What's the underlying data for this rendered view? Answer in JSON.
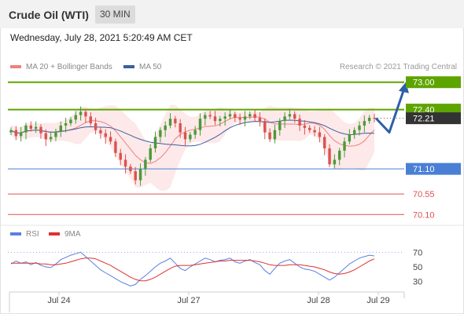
{
  "header": {
    "title": "Crude Oil (WTI)",
    "timeframe": "30 MIN"
  },
  "datetime": "Wednesday, July 28, 2021 5:20:49 AM CET",
  "legend": {
    "ma20_label": "MA 20 + Bollinger Bands",
    "ma50_label": "MA 50",
    "copyright": "Research © 2021 Trading Central"
  },
  "rsi_legend": {
    "rsi_label": "RSI",
    "ma_label": "9MA"
  },
  "colors": {
    "resistance": "#5ea400",
    "support": "#4a7fd6",
    "pivot": "#e05050",
    "current": "#333333",
    "bull": "#4a9a3a",
    "bear": "#d9534f",
    "ma20": "#f08080",
    "ma50": "#3a5fa0",
    "band": "#fde3e3",
    "arrow": "#2f5ea8",
    "rsi": "#5b7fe0",
    "rsi_ma": "#e03030"
  },
  "chart_data": [
    {
      "type": "candlestick",
      "instrument": "Crude Oil (WTI)",
      "timeframe": "30 MIN",
      "x_ticks": [
        "Jul 24",
        "Jul 27",
        "Jul 28",
        "Jul 29"
      ],
      "ylim": [
        69.95,
        73.15
      ],
      "levels": [
        {
          "value": 73.0,
          "label": "73.00",
          "kind": "resistance"
        },
        {
          "value": 72.4,
          "label": "72.40",
          "kind": "resistance"
        },
        {
          "value": 72.21,
          "label": "72.21",
          "kind": "current"
        },
        {
          "value": 71.1,
          "label": "71.10",
          "kind": "support"
        },
        {
          "value": 70.55,
          "label": "70.55",
          "kind": "pivot"
        },
        {
          "value": 70.1,
          "label": "70.10",
          "kind": "pivot"
        }
      ],
      "close_series": [
        71.95,
        71.82,
        71.9,
        72.05,
        71.98,
        72.02,
        71.88,
        71.75,
        71.8,
        71.92,
        72.05,
        72.1,
        72.18,
        72.28,
        72.35,
        72.25,
        72.1,
        71.95,
        71.88,
        71.8,
        71.7,
        71.45,
        71.3,
        71.15,
        71.05,
        70.85,
        71.1,
        71.3,
        71.55,
        71.8,
        71.95,
        72.05,
        72.2,
        72.1,
        71.9,
        71.75,
        71.85,
        71.95,
        72.2,
        72.28,
        72.25,
        72.15,
        72.2,
        72.25,
        72.3,
        72.22,
        72.18,
        72.25,
        72.3,
        72.22,
        72.15,
        71.9,
        71.75,
        71.95,
        72.15,
        72.25,
        72.3,
        72.2,
        72.05,
        72.0,
        71.95,
        71.9,
        71.8,
        71.55,
        71.2,
        71.3,
        71.5,
        71.7,
        71.85,
        71.95,
        72.05,
        72.15,
        72.22,
        72.21
      ],
      "arrow_path": [
        72.21,
        71.9,
        73.0
      ],
      "series": [
        {
          "name": "MA 20 + Bollinger Bands"
        },
        {
          "name": "MA 50"
        }
      ]
    },
    {
      "type": "line",
      "y_ticks": [
        "70",
        "50",
        "30"
      ],
      "ylim": [
        20,
        80
      ],
      "series": [
        {
          "name": "RSI",
          "values": [
            54,
            58,
            55,
            57,
            53,
            56,
            52,
            50,
            49,
            54,
            60,
            63,
            66,
            68,
            70,
            64,
            58,
            52,
            46,
            42,
            38,
            34,
            30,
            27,
            24,
            26,
            33,
            38,
            44,
            50,
            55,
            58,
            62,
            55,
            48,
            45,
            50,
            54,
            58,
            62,
            60,
            57,
            59,
            60,
            62,
            57,
            55,
            58,
            60,
            56,
            53,
            45,
            40,
            48,
            55,
            58,
            60,
            55,
            50,
            47,
            46,
            44,
            40,
            36,
            32,
            36,
            42,
            48,
            54,
            58,
            62,
            64,
            66,
            65
          ]
        },
        {
          "name": "9MA",
          "values": [
            55,
            55,
            55,
            55,
            55,
            55,
            54,
            54,
            53,
            53,
            54,
            55,
            57,
            59,
            61,
            62,
            62,
            61,
            58,
            55,
            52,
            48,
            44,
            40,
            36,
            33,
            31,
            31,
            33,
            36,
            40,
            44,
            48,
            51,
            52,
            52,
            52,
            53,
            54,
            55,
            56,
            57,
            58,
            58,
            59,
            59,
            59,
            59,
            59,
            58,
            57,
            55,
            53,
            52,
            52,
            52,
            53,
            53,
            53,
            52,
            51,
            50,
            48,
            46,
            43,
            41,
            40,
            41,
            43,
            46,
            50,
            54,
            58,
            61
          ]
        }
      ]
    }
  ]
}
